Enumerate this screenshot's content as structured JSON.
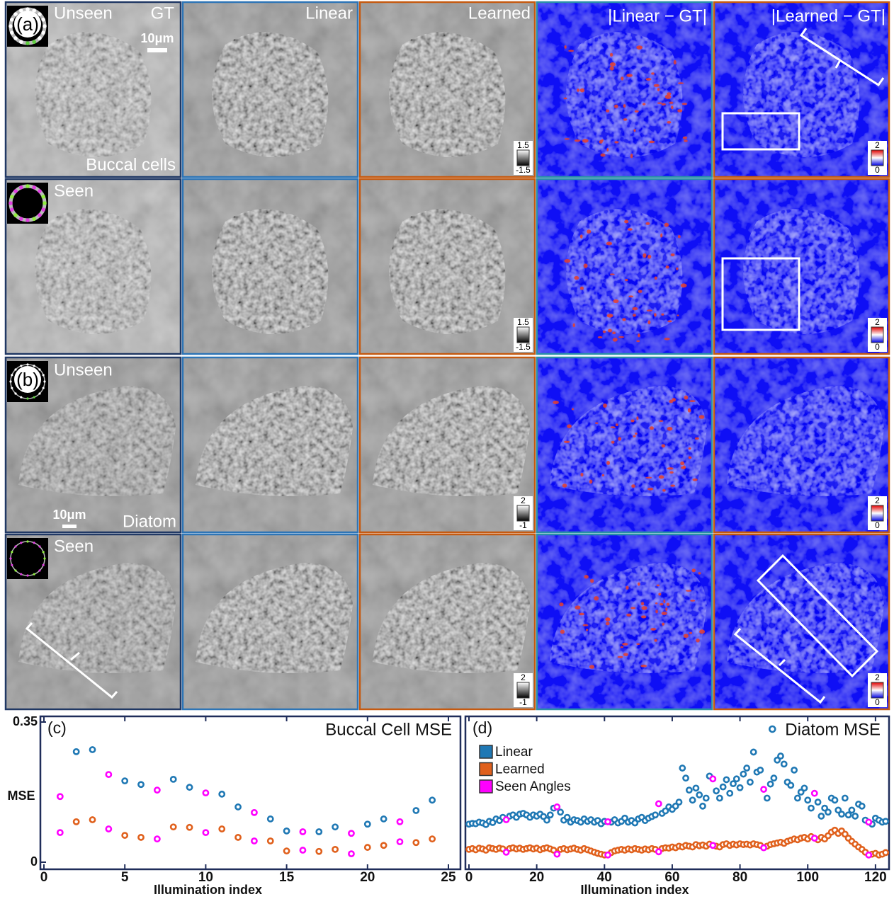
{
  "figure": {
    "columns": [
      "GT",
      "Linear",
      "Learned",
      "|Linear − GT|",
      "|Learned − GT|"
    ],
    "rows": [
      {
        "panel_label": "(a)",
        "condition": "Unseen",
        "sample": "Buccal cells",
        "scale_bar": "10μm",
        "colorbar_gray": [
          1.5,
          -1.5
        ],
        "colorbar_error": [
          2,
          0
        ]
      },
      {
        "condition": "Seen",
        "colorbar_gray": [
          1.5,
          -1.5
        ],
        "colorbar_error": [
          2,
          0
        ]
      },
      {
        "panel_label": "(b)",
        "condition": "Unseen",
        "sample": "Diatom",
        "scale_bar": "10μm",
        "colorbar_gray": [
          2,
          -1
        ],
        "colorbar_error": [
          2,
          0
        ]
      },
      {
        "condition": "Seen",
        "colorbar_gray": [
          2,
          -1
        ],
        "colorbar_error": [
          2,
          0
        ]
      }
    ]
  },
  "chart_data": [
    {
      "type": "scatter",
      "panel_label": "(c)",
      "title": "Buccal Cell MSE",
      "xlabel": "Illumination index",
      "ylabel": "MSE",
      "x": [
        1,
        2,
        3,
        4,
        5,
        6,
        7,
        8,
        9,
        10,
        11,
        12,
        13,
        14,
        15,
        16,
        17,
        18,
        19,
        20,
        21,
        22,
        23,
        24
      ],
      "xlim": [
        0,
        25
      ],
      "ylim": [
        0,
        0.35
      ],
      "xticks": [
        0,
        5,
        10,
        15,
        20,
        25
      ],
      "yticks": [
        0,
        0.35
      ],
      "series": [
        {
          "color": "#1f78b4",
          "values": [
            null,
            0.276,
            0.281,
            null,
            0.203,
            0.194,
            null,
            0.207,
            0.187,
            null,
            0.17,
            0.138,
            null,
            0.108,
            0.078,
            null,
            0.076,
            0.088,
            null,
            0.095,
            0.108,
            null,
            0.129,
            0.155
          ]
        },
        {
          "color": "#e0601c",
          "values": [
            null,
            0.101,
            0.106,
            null,
            0.067,
            0.062,
            null,
            0.088,
            0.087,
            null,
            0.083,
            0.062,
            null,
            0.053,
            0.028,
            null,
            0.027,
            0.032,
            null,
            0.037,
            0.042,
            null,
            0.049,
            0.058
          ]
        },
        {
          "color": "#ff00ff",
          "x": [
            1,
            4,
            7,
            10,
            13,
            16,
            19,
            22,
            1,
            4,
            7,
            10,
            13,
            16,
            19,
            22
          ],
          "values": [
            0.164,
            0.219,
            0.18,
            0.173,
            0.124,
            0.076,
            0.072,
            0.101,
            0.074,
            0.083,
            0.058,
            0.074,
            0.053,
            0.03,
            0.021,
            0.051
          ]
        }
      ]
    },
    {
      "type": "scatter",
      "panel_label": "(d)",
      "title": "Diatom MSE",
      "xlabel": "Illumination index",
      "legend": "upper left",
      "x": [
        0,
        1,
        2,
        3,
        4,
        5,
        6,
        7,
        8,
        9,
        10,
        11,
        12,
        13,
        14,
        15,
        16,
        17,
        18,
        19,
        20,
        21,
        22,
        23,
        24,
        25,
        26,
        27,
        28,
        29,
        30,
        31,
        32,
        33,
        34,
        35,
        36,
        37,
        38,
        39,
        40,
        41,
        42,
        43,
        44,
        45,
        46,
        47,
        48,
        49,
        50,
        51,
        52,
        53,
        54,
        55,
        56,
        57,
        58,
        59,
        60,
        61,
        62,
        63,
        64,
        65,
        66,
        67,
        68,
        69,
        70,
        71,
        72,
        73,
        74,
        75,
        76,
        77,
        78,
        79,
        80,
        81,
        82,
        83,
        84,
        85,
        86,
        87,
        88,
        89,
        90,
        91,
        92,
        93,
        94,
        95,
        96,
        97,
        98,
        99,
        100,
        101,
        102,
        103,
        104,
        105,
        106,
        107,
        108,
        109,
        110,
        111,
        112,
        113,
        114,
        115,
        116,
        117,
        118,
        119,
        120,
        121,
        122,
        123
      ],
      "xlim": [
        0,
        124
      ],
      "ylim": [
        0,
        0.35
      ],
      "xticks": [
        0,
        20,
        40,
        60,
        80,
        100,
        120
      ],
      "series": [
        {
          "name": "Linear",
          "color": "#1f78b4",
          "values": [
            0.095,
            0.097,
            0.096,
            0.1,
            0.098,
            0.094,
            0.102,
            0.099,
            0.108,
            0.104,
            0.112,
            null,
            0.115,
            0.118,
            0.112,
            0.12,
            0.122,
            0.118,
            0.112,
            0.118,
            0.115,
            0.12,
            0.114,
            0.105,
            0.118,
            0.135,
            null,
            0.125,
            0.105,
            0.112,
            0.1,
            0.106,
            0.104,
            0.1,
            0.108,
            0.102,
            0.106,
            0.1,
            0.104,
            0.096,
            0.102,
            null,
            0.1,
            0.106,
            0.098,
            0.102,
            0.11,
            0.1,
            0.104,
            0.098,
            0.108,
            0.112,
            0.104,
            0.11,
            0.114,
            0.118,
            null,
            0.122,
            0.128,
            0.138,
            0.132,
            0.14,
            0.15,
            0.235,
            0.21,
            0.18,
            0.155,
            0.185,
            0.168,
            0.14,
            0.16,
            0.215,
            null,
            0.178,
            0.16,
            0.188,
            0.206,
            0.172,
            0.196,
            0.208,
            0.186,
            0.22,
            0.235,
            0.2,
            0.275,
            0.225,
            0.23,
            null,
            0.16,
            0.195,
            0.21,
            0.255,
            0.265,
            0.245,
            0.2,
            0.192,
            0.23,
            0.16,
            0.175,
            0.185,
            0.155,
            0.135,
            null,
            0.15,
            0.115,
            0.135,
            0.125,
            0.16,
            0.155,
            0.13,
            0.12,
            0.16,
            0.118,
            0.13,
            0.115,
            0.145,
            0.14,
            0.105,
            null,
            0.095,
            0.11,
            0.105,
            0.1,
            0.102
          ]
        },
        {
          "name": "Learned",
          "color": "#e0601c",
          "values": [
            0.032,
            0.034,
            0.031,
            0.035,
            0.033,
            0.03,
            0.036,
            0.034,
            0.032,
            0.035,
            0.033,
            null,
            0.034,
            0.036,
            0.033,
            0.035,
            0.032,
            0.034,
            0.036,
            0.033,
            0.035,
            0.031,
            0.034,
            0.036,
            0.033,
            0.03,
            null,
            0.032,
            0.034,
            0.031,
            0.033,
            0.035,
            0.032,
            0.03,
            0.034,
            0.031,
            0.028,
            0.025,
            0.022,
            0.02,
            0.018,
            null,
            0.024,
            0.028,
            0.03,
            0.032,
            0.03,
            0.033,
            0.031,
            0.034,
            0.032,
            0.03,
            0.033,
            0.031,
            0.034,
            0.032,
            null,
            0.034,
            0.036,
            0.035,
            0.038,
            0.036,
            0.04,
            0.038,
            0.042,
            0.04,
            0.038,
            0.044,
            0.041,
            0.043,
            0.04,
            0.045,
            null,
            0.04,
            0.038,
            0.044,
            0.046,
            0.042,
            0.045,
            0.043,
            0.046,
            0.044,
            0.045,
            0.043,
            0.046,
            0.044,
            0.042,
            null,
            0.04,
            0.044,
            0.046,
            0.048,
            0.05,
            0.047,
            0.052,
            0.055,
            0.058,
            0.056,
            0.06,
            0.062,
            0.058,
            0.064,
            null,
            0.056,
            0.062,
            0.058,
            0.066,
            0.075,
            0.08,
            0.072,
            0.078,
            0.07,
            0.06,
            0.052,
            0.045,
            0.038,
            0.032,
            0.025,
            null,
            0.02,
            0.022,
            0.018,
            0.02,
            0.024
          ]
        },
        {
          "name": "Seen Angles",
          "color": "#ff00ff",
          "x": [
            11,
            26,
            41,
            56,
            72,
            87,
            102,
            118,
            11,
            26,
            41,
            56,
            72,
            87,
            102,
            118
          ],
          "values": [
            0.106,
            0.138,
            0.101,
            0.146,
            0.208,
            0.182,
            0.172,
            0.1,
            0.025,
            0.02,
            0.018,
            0.026,
            0.042,
            0.036,
            0.06,
            0.018
          ]
        }
      ]
    }
  ]
}
